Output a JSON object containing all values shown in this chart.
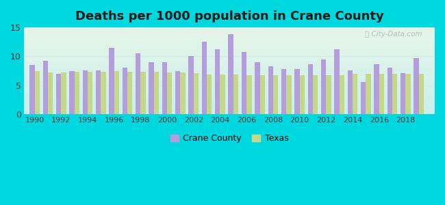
{
  "title": "Deaths per 1000 population in Crane County",
  "years": [
    1990,
    1991,
    1992,
    1993,
    1994,
    1995,
    1996,
    1997,
    1998,
    1999,
    2000,
    2001,
    2002,
    2003,
    2004,
    2005,
    2006,
    2007,
    2008,
    2009,
    2010,
    2011,
    2012,
    2013,
    2014,
    2015,
    2016,
    2017,
    2018,
    2019
  ],
  "crane_county": [
    8.5,
    9.2,
    7.0,
    7.5,
    7.6,
    7.6,
    11.5,
    8.1,
    10.5,
    9.0,
    9.0,
    7.5,
    10.1,
    12.5,
    11.2,
    13.8,
    10.8,
    9.0,
    8.3,
    7.8,
    7.8,
    8.7,
    9.5,
    11.2,
    7.6,
    5.6,
    8.6,
    8.0,
    7.1,
    9.7
  ],
  "texas": [
    7.5,
    7.2,
    7.2,
    7.4,
    7.4,
    7.4,
    7.5,
    7.4,
    7.3,
    7.3,
    7.2,
    7.2,
    7.1,
    6.9,
    6.9,
    6.9,
    6.8,
    6.8,
    6.8,
    6.7,
    6.7,
    6.7,
    6.7,
    6.8,
    7.0,
    7.0,
    7.0,
    7.0,
    7.0,
    7.0
  ],
  "crane_color": "#b39ddb",
  "texas_color": "#c5d88a",
  "background_outer": "#00d8e0",
  "bg_top_color": "#e8f5e8",
  "bg_bottom_color": "#c8f0ee",
  "grid_color": "#d0ece8",
  "ylim": [
    0,
    15
  ],
  "yticks": [
    0,
    5,
    10,
    15
  ],
  "bar_width": 0.38,
  "title_fontsize": 13,
  "legend_labels": [
    "Crane County",
    "Texas"
  ]
}
